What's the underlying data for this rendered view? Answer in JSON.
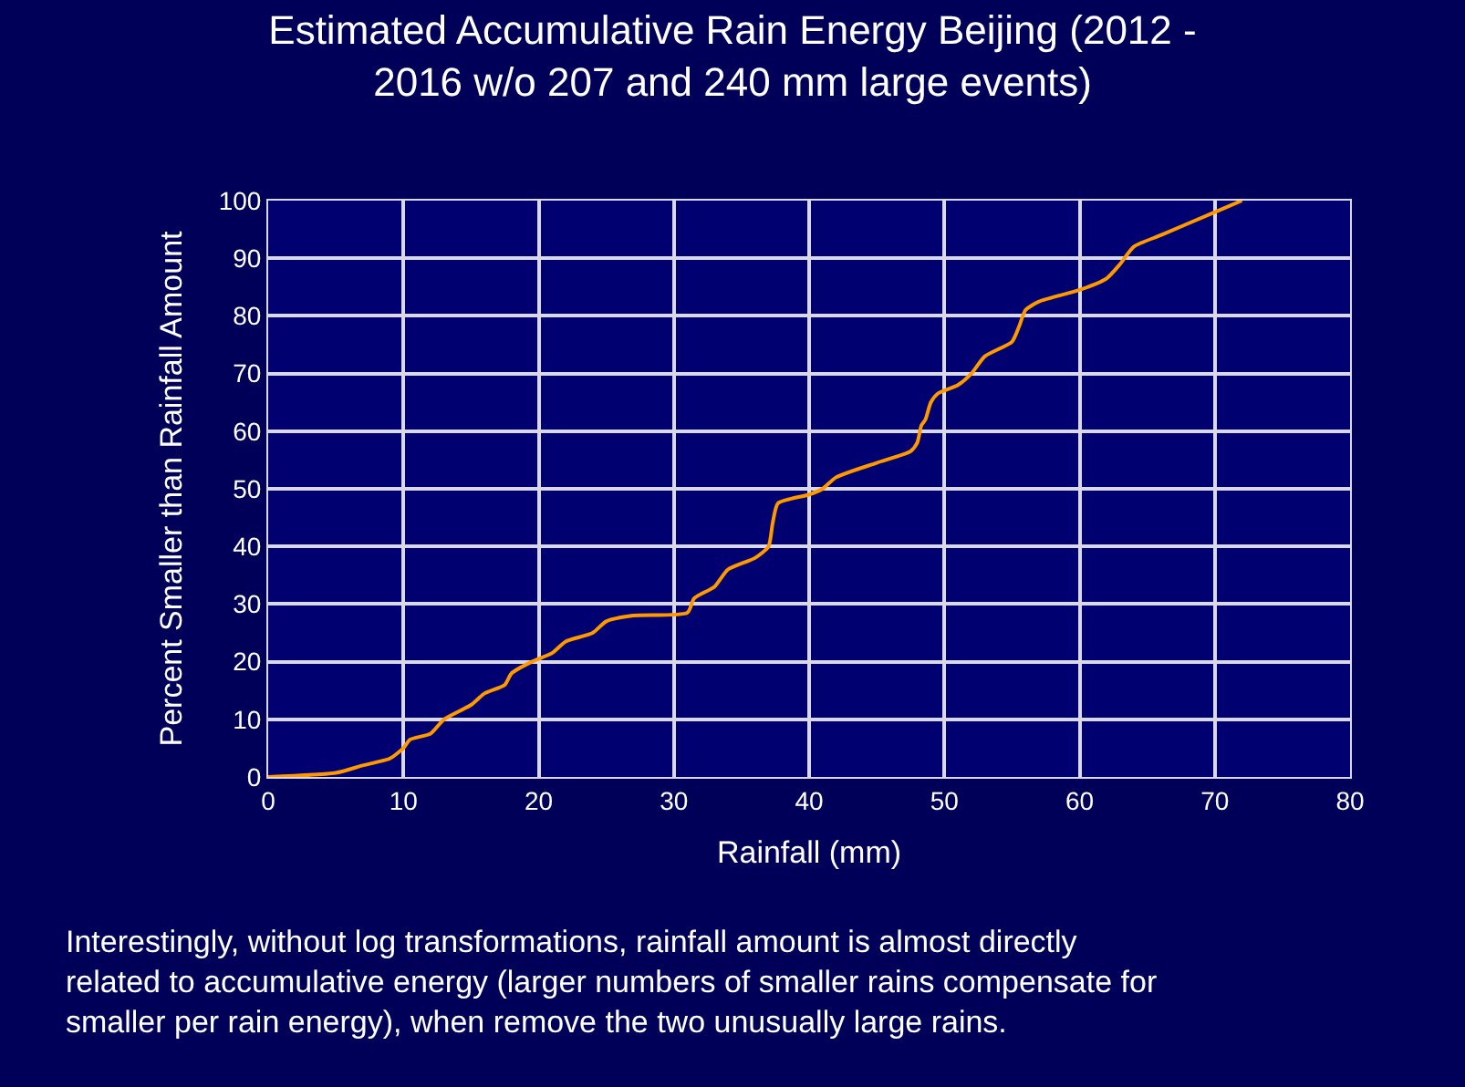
{
  "chart_data": {
    "type": "line",
    "title": "Estimated Accumulative Rain Energy Beijing (2012 -\n2016 w/o 207 and 240 mm large events)",
    "xlabel": "Rainfall (mm)",
    "ylabel": "Percent Smaller than Rainfall Amount",
    "x": [
      0,
      5,
      7,
      9,
      10,
      10.5,
      12,
      13,
      15,
      16,
      17.5,
      18,
      19.5,
      21,
      22,
      24,
      25,
      27,
      31,
      31.5,
      33,
      34,
      36,
      37,
      37.3,
      37.7,
      40,
      41,
      42,
      45,
      47.5,
      48,
      48.3,
      48.6,
      49,
      49.5,
      51,
      52,
      53,
      55,
      55.5,
      56,
      57,
      60,
      62,
      63,
      64,
      66,
      70,
      72
    ],
    "series": [
      {
        "color": "#ff9900",
        "values": [
          0,
          0.7,
          2,
          3.2,
          5,
          6.5,
          7.5,
          10,
          12.5,
          14.5,
          16,
          18,
          20,
          21.5,
          23.5,
          25,
          27,
          28,
          28.5,
          31,
          33,
          36,
          38,
          40,
          44,
          47.5,
          49,
          50,
          52,
          54.5,
          56.5,
          58,
          61,
          62,
          65,
          66.5,
          68,
          70,
          73,
          75.5,
          78,
          81,
          82.5,
          84.5,
          86.5,
          89,
          92,
          94,
          98,
          100
        ]
      }
    ],
    "xlim": [
      0,
      80
    ],
    "xticks": [
      0,
      10,
      20,
      30,
      40,
      50,
      60,
      70,
      80
    ],
    "ylim": [
      0,
      100
    ],
    "yticks": [
      0,
      10,
      20,
      30,
      40,
      50,
      60,
      70,
      80,
      90,
      100
    ],
    "grid": true,
    "marker": "none",
    "line_style": "solid",
    "annotations": [
      "Interestingly, without log transformations, rainfall amount is almost directly\nrelated to accumulative energy (larger numbers of smaller rains compensate for\nsmaller per rain energy), when remove the two unusually large rains."
    ]
  }
}
